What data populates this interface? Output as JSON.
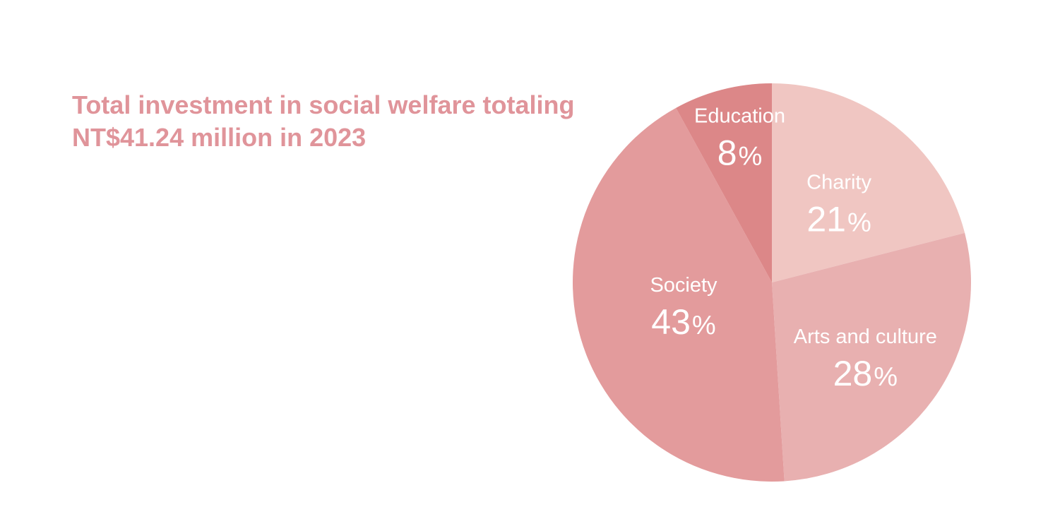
{
  "title_lines": [
    "Total investment in social welfare totaling",
    "NT$41.24 million in 2023"
  ],
  "chart_data": {
    "type": "pie",
    "title": "Total investment in social welfare totaling NT$41.24 million in 2023",
    "start_angle_deg": 0,
    "direction": "clockwise",
    "slices": [
      {
        "label": "Charity",
        "value": 21,
        "color": "#f0c6c2"
      },
      {
        "label": "Arts and culture",
        "value": 28,
        "color": "#e8b0b0"
      },
      {
        "label": "Society",
        "value": 43,
        "color": "#e39b9c"
      },
      {
        "label": "Education",
        "value": 8,
        "color": "#dc8788"
      }
    ],
    "value_suffix": "%"
  }
}
